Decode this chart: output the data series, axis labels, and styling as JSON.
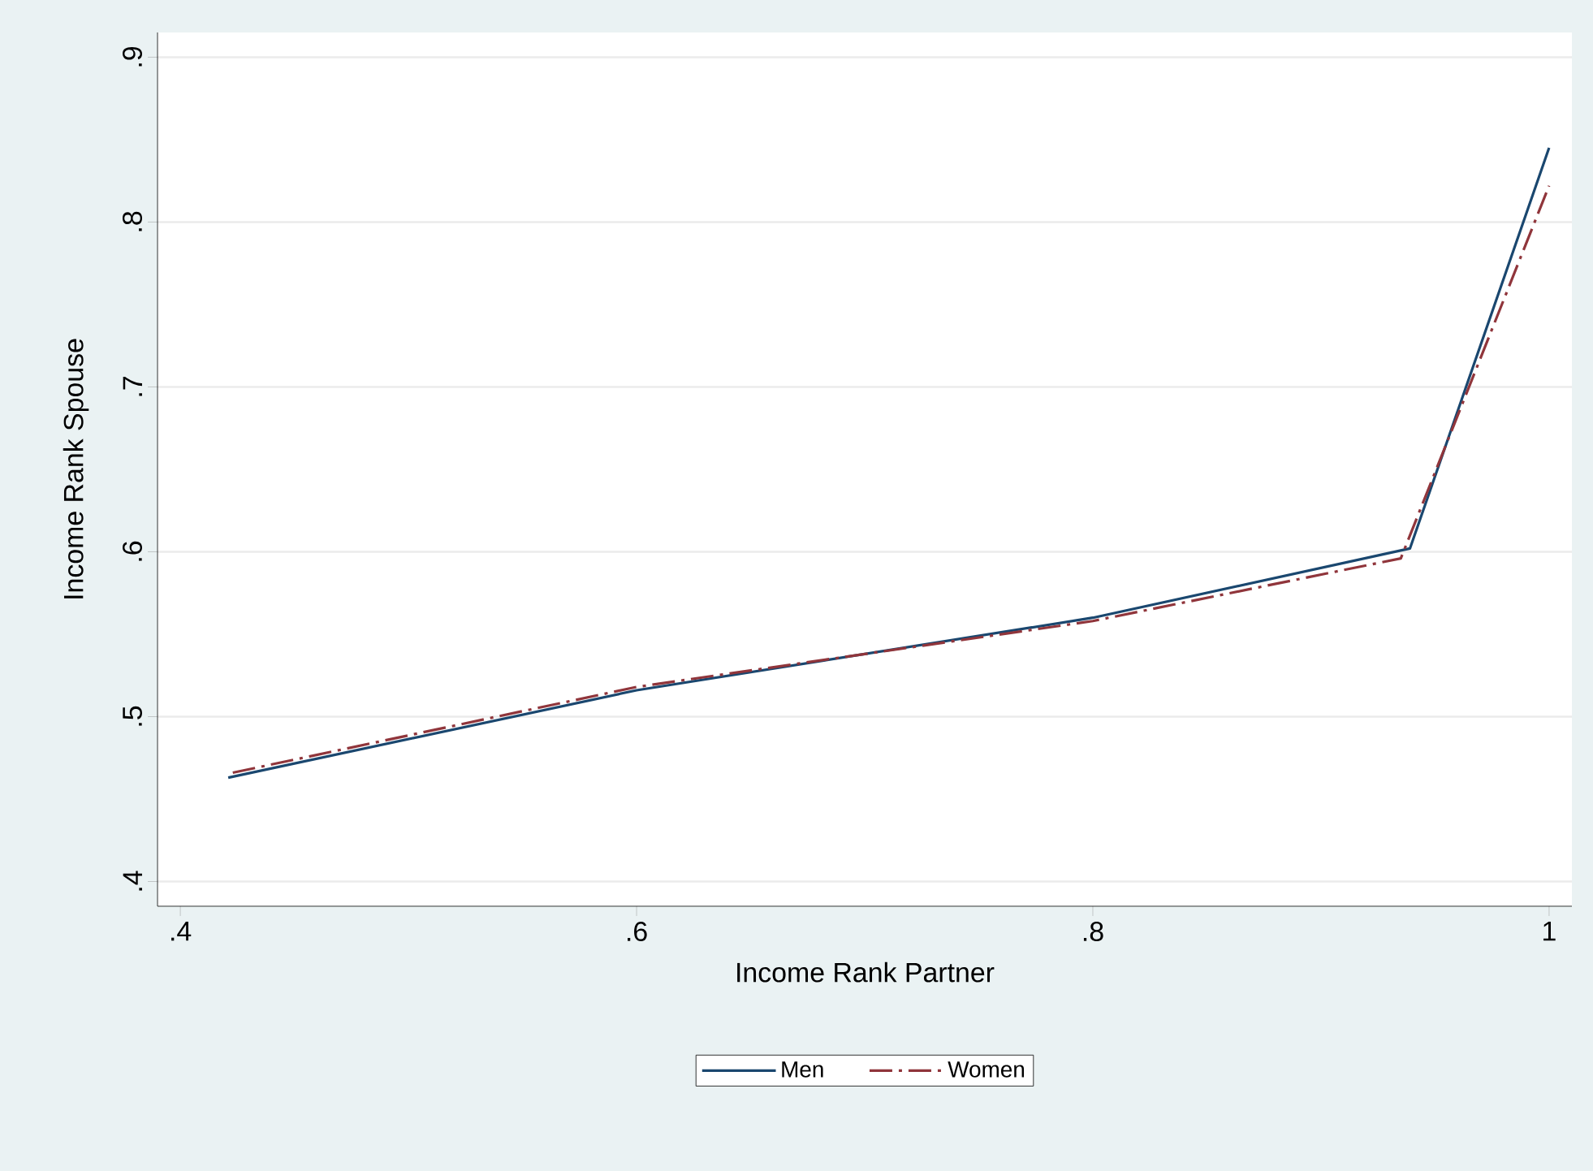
{
  "chart_data": {
    "type": "line",
    "xlabel": "Income Rank Partner",
    "ylabel": "Income Rank Spouse",
    "xlim": [
      0.39,
      1.01
    ],
    "ylim": [
      0.385,
      0.915
    ],
    "xticks": [
      {
        "value": 0.4,
        "label": ".4"
      },
      {
        "value": 0.6,
        "label": ".6"
      },
      {
        "value": 0.8,
        "label": ".8"
      },
      {
        "value": 1,
        "label": "1"
      }
    ],
    "yticks": [
      {
        "value": 0.4,
        "label": ".4"
      },
      {
        "value": 0.5,
        "label": ".5"
      },
      {
        "value": 0.6,
        "label": ".6"
      },
      {
        "value": 0.7,
        "label": ".7"
      },
      {
        "value": 0.8,
        "label": ".8"
      },
      {
        "value": 0.9,
        "label": ".9"
      }
    ],
    "grid": "y",
    "legend": "bottom",
    "marker": "none",
    "series": [
      {
        "name": "Men",
        "color": "#1a476f",
        "line_style": "solid",
        "x": [
          0.421,
          0.6,
          0.8,
          0.939,
          1.0
        ],
        "values": [
          0.463,
          0.516,
          0.56,
          0.602,
          0.845
        ]
      },
      {
        "name": "Women",
        "color": "#90353b",
        "line_style": "dashdot",
        "x": [
          0.423,
          0.6,
          0.8,
          0.935,
          1.0
        ],
        "values": [
          0.466,
          0.518,
          0.558,
          0.596,
          0.822
        ]
      }
    ]
  }
}
